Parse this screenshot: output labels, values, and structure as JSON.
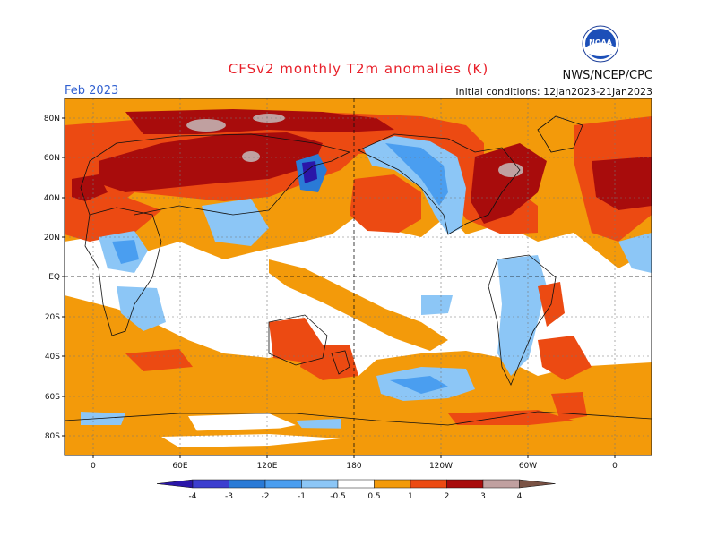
{
  "header": {
    "title": "CFSv2 monthly T2m anomalies (K)",
    "agency": "NWS/NCEP/CPC",
    "month": "Feb 2023",
    "initial_conditions": "Initial conditions: 12Jan2023-21Jan2023",
    "logo_text": "NOAA"
  },
  "axes": {
    "lat_labels": [
      "80N",
      "60N",
      "40N",
      "20N",
      "EQ",
      "20S",
      "40S",
      "60S",
      "80S"
    ],
    "lon_labels": [
      "0",
      "60E",
      "120E",
      "180",
      "120W",
      "60W",
      "0"
    ]
  },
  "legend": {
    "tick_labels": [
      "-4",
      "-3",
      "-2",
      "-1",
      "-0.5",
      "0.5",
      "1",
      "2",
      "3",
      "4"
    ],
    "bins": [
      {
        "color": "#2a16a8"
      },
      {
        "color": "#3c3ecf"
      },
      {
        "color": "#2a7ad6"
      },
      {
        "color": "#4a9ef0"
      },
      {
        "color": "#8cc6f6"
      },
      {
        "color": "#ffffff"
      },
      {
        "color": "#f39a0a"
      },
      {
        "color": "#ec4a12"
      },
      {
        "color": "#a80c0c"
      },
      {
        "color": "#c0a0a0"
      },
      {
        "color": "#7a5244"
      }
    ]
  }
}
